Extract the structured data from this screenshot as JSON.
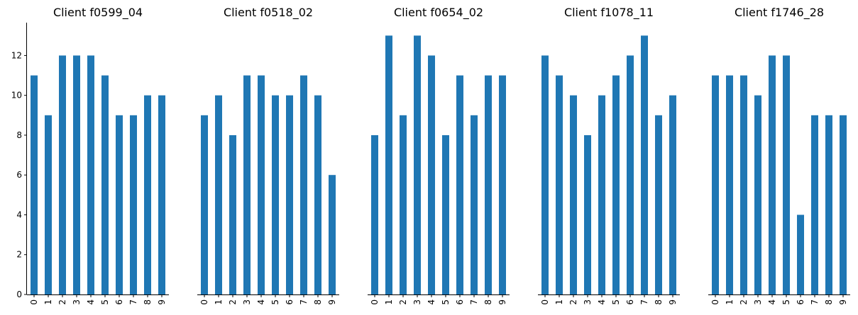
{
  "chart_data": [
    {
      "type": "bar",
      "title": "Client f0599_04",
      "categories": [
        "0",
        "1",
        "2",
        "3",
        "4",
        "5",
        "6",
        "7",
        "8",
        "9"
      ],
      "values": [
        11,
        9,
        12,
        12,
        12,
        11,
        9,
        9,
        10,
        10
      ],
      "ylim": [
        0,
        13.65
      ],
      "yticks": [
        0,
        2,
        4,
        6,
        8,
        10,
        12
      ],
      "show_yaxis": true,
      "color": "#1f77b4"
    },
    {
      "type": "bar",
      "title": "Client f0518_02",
      "categories": [
        "0",
        "1",
        "2",
        "3",
        "4",
        "5",
        "6",
        "7",
        "8",
        "9"
      ],
      "values": [
        9,
        10,
        8,
        11,
        11,
        10,
        10,
        11,
        10,
        6
      ],
      "ylim": [
        0,
        13.65
      ],
      "yticks": [],
      "show_yaxis": false,
      "color": "#1f77b4"
    },
    {
      "type": "bar",
      "title": "Client f0654_02",
      "categories": [
        "0",
        "1",
        "2",
        "3",
        "4",
        "5",
        "6",
        "7",
        "8",
        "9"
      ],
      "values": [
        8,
        13,
        9,
        13,
        12,
        8,
        11,
        9,
        11,
        11
      ],
      "ylim": [
        0,
        13.65
      ],
      "yticks": [],
      "show_yaxis": false,
      "color": "#1f77b4"
    },
    {
      "type": "bar",
      "title": "Client f1078_11",
      "categories": [
        "0",
        "1",
        "2",
        "3",
        "4",
        "5",
        "6",
        "7",
        "8",
        "9"
      ],
      "values": [
        12,
        11,
        10,
        8,
        10,
        11,
        12,
        13,
        9,
        10
      ],
      "ylim": [
        0,
        13.65
      ],
      "yticks": [],
      "show_yaxis": false,
      "color": "#1f77b4"
    },
    {
      "type": "bar",
      "title": "Client f1746_28",
      "categories": [
        "0",
        "1",
        "2",
        "3",
        "4",
        "5",
        "6",
        "7",
        "8",
        "9"
      ],
      "values": [
        11,
        11,
        11,
        10,
        12,
        12,
        4,
        9,
        9,
        9
      ],
      "ylim": [
        0,
        13.65
      ],
      "yticks": [],
      "show_yaxis": false,
      "color": "#1f77b4"
    }
  ]
}
